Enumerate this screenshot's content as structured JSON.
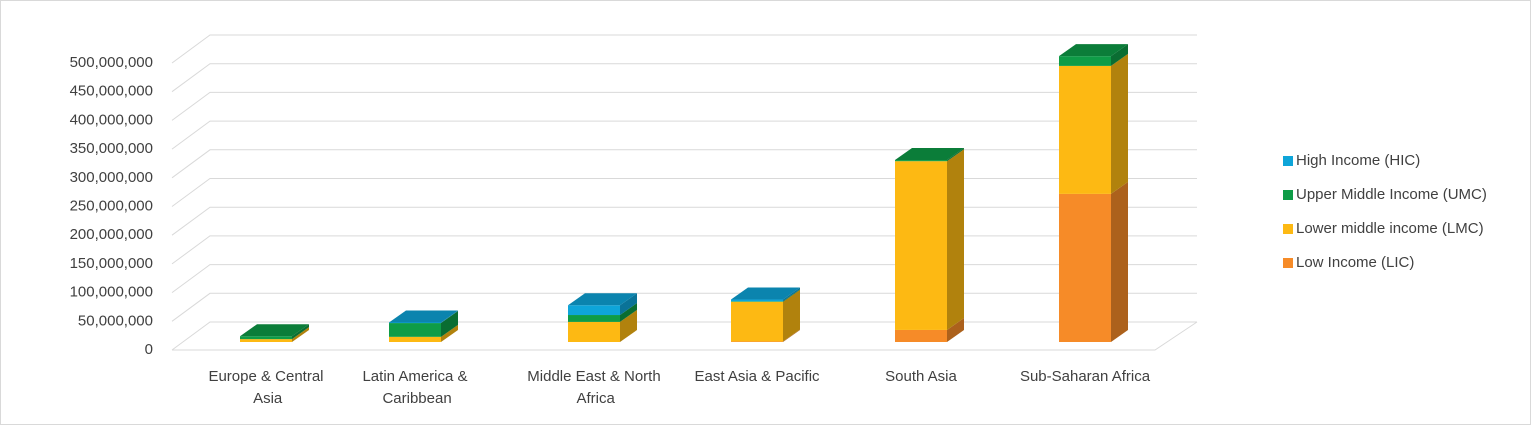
{
  "chart_data": {
    "type": "bar3d-stacked",
    "categories": [
      "Europe & Central Asia",
      "Latin America & Caribbean",
      "Middle East & North Africa",
      "East Asia & Pacific",
      "South Asia",
      "Sub-Saharan Africa"
    ],
    "series": [
      {
        "name": "Low Income (LIC)",
        "color": "#f68b28",
        "values": [
          0,
          0,
          0,
          1000000,
          21000000,
          258000000
        ]
      },
      {
        "name": "Lower middle income (LMC)",
        "color": "#fdb913",
        "values": [
          5000000,
          9000000,
          35000000,
          69000000,
          294000000,
          223000000
        ]
      },
      {
        "name": "Upper Middle Income (UMC)",
        "color": "#0e9c47",
        "values": [
          5000000,
          24000000,
          12000000,
          1000000,
          2000000,
          17000000
        ]
      },
      {
        "name": "High Income (HIC)",
        "color": "#0ea5d9",
        "values": [
          0,
          1000000,
          17000000,
          3000000,
          0,
          0
        ]
      }
    ],
    "ylim": [
      0,
      500000000
    ],
    "yticks": [
      {
        "value": 0,
        "label": "0"
      },
      {
        "value": 50000000,
        "label": "50,000,000"
      },
      {
        "value": 100000000,
        "label": "100,000,000"
      },
      {
        "value": 150000000,
        "label": "150,000,000"
      },
      {
        "value": 200000000,
        "label": "200,000,000"
      },
      {
        "value": 250000000,
        "label": "250,000,000"
      },
      {
        "value": 300000000,
        "label": "300,000,000"
      },
      {
        "value": 350000000,
        "label": "350,000,000"
      },
      {
        "value": 400000000,
        "label": "400,000,000"
      },
      {
        "value": 450000000,
        "label": "450,000,000"
      },
      {
        "value": 500000000,
        "label": "500,000,000"
      }
    ],
    "grid": true,
    "legend": "right"
  }
}
